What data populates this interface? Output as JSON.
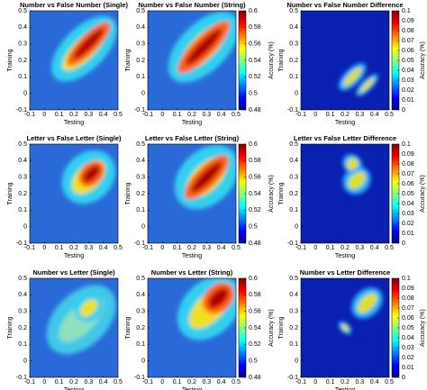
{
  "chart_data": [
    {
      "type": "heatmap",
      "title": "Number vs False Number (Single)",
      "xlabel": "Testing",
      "ylabel": "Training",
      "xlim": [
        -0.1,
        0.5
      ],
      "ylim": [
        -0.1,
        0.5
      ],
      "xticks": [
        -0.1,
        0,
        0.1,
        0.2,
        0.3,
        0.4,
        0.5
      ],
      "yticks": [
        -0.1,
        0,
        0.1,
        0.2,
        0.3,
        0.4,
        0.5
      ]
    },
    {
      "type": "heatmap",
      "title": "Number vs False Number (String)",
      "xlabel": "Testing",
      "ylabel": "Training",
      "xlim": [
        -0.1,
        0.5
      ],
      "ylim": [
        -0.1,
        0.5
      ],
      "xticks": [
        -0.1,
        0,
        0.1,
        0.2,
        0.3,
        0.4,
        0.5
      ],
      "yticks": [
        -0.1,
        0,
        0.1,
        0.2,
        0.3,
        0.4,
        0.5
      ],
      "colorbar": {
        "label": "Accuracy (%)",
        "lim": [
          0.48,
          0.6
        ],
        "ticks": [
          0.48,
          0.5,
          0.52,
          0.54,
          0.56,
          0.58,
          0.6
        ]
      }
    },
    {
      "type": "heatmap",
      "title": "Number vs False Number Difference",
      "xlabel": "Testing",
      "ylabel": "Training",
      "xlim": [
        -0.1,
        0.5
      ],
      "ylim": [
        -0.1,
        0.5
      ],
      "xticks": [
        -0.1,
        0,
        0.1,
        0.2,
        0.3,
        0.4,
        0.5
      ],
      "yticks": [
        -0.1,
        0,
        0.1,
        0.2,
        0.3,
        0.4,
        0.5
      ],
      "colorbar": {
        "label": "Accuracy (%)",
        "lim": [
          0,
          0.1
        ],
        "ticks": [
          0,
          0.01,
          0.02,
          0.03,
          0.04,
          0.05,
          0.06,
          0.07,
          0.08,
          0.09,
          0.1
        ]
      }
    },
    {
      "type": "heatmap",
      "title": "Letter vs False Letter (Single)",
      "xlabel": "Testing",
      "ylabel": "Training",
      "xlim": [
        -0.1,
        0.5
      ],
      "ylim": [
        -0.1,
        0.5
      ],
      "xticks": [
        -0.1,
        0,
        0.1,
        0.2,
        0.3,
        0.4,
        0.5
      ],
      "yticks": [
        -0.1,
        0,
        0.1,
        0.2,
        0.3,
        0.4,
        0.5
      ]
    },
    {
      "type": "heatmap",
      "title": "Letter vs False Letter (String)",
      "xlabel": "Testing",
      "ylabel": "Training",
      "xlim": [
        -0.1,
        0.5
      ],
      "ylim": [
        -0.1,
        0.5
      ],
      "xticks": [
        -0.1,
        0,
        0.1,
        0.2,
        0.3,
        0.4,
        0.5
      ],
      "yticks": [
        -0.1,
        0,
        0.1,
        0.2,
        0.3,
        0.4,
        0.5
      ],
      "colorbar": {
        "label": "Accuracy (%)",
        "lim": [
          0.48,
          0.6
        ],
        "ticks": [
          0.48,
          0.5,
          0.52,
          0.54,
          0.56,
          0.58,
          0.6
        ]
      }
    },
    {
      "type": "heatmap",
      "title": "Letter vs False Letter Difference",
      "xlabel": "Testing",
      "ylabel": "Training",
      "xlim": [
        -0.1,
        0.5
      ],
      "ylim": [
        -0.1,
        0.5
      ],
      "xticks": [
        -0.1,
        0,
        0.1,
        0.2,
        0.3,
        0.4,
        0.5
      ],
      "yticks": [
        -0.1,
        0,
        0.1,
        0.2,
        0.3,
        0.4,
        0.5
      ],
      "colorbar": {
        "label": "Accuracy (%)",
        "lim": [
          0,
          0.1
        ],
        "ticks": [
          0,
          0.01,
          0.02,
          0.03,
          0.04,
          0.05,
          0.06,
          0.07,
          0.08,
          0.09,
          0.1
        ]
      }
    },
    {
      "type": "heatmap",
      "title": "Number vs Letter (Single)",
      "xlabel": "Testing",
      "ylabel": "Training",
      "xlim": [
        -0.1,
        0.5
      ],
      "ylim": [
        -0.1,
        0.5
      ],
      "xticks": [
        -0.1,
        0,
        0.1,
        0.2,
        0.3,
        0.4,
        0.5
      ],
      "yticks": [
        -0.1,
        0,
        0.1,
        0.2,
        0.3,
        0.4,
        0.5
      ]
    },
    {
      "type": "heatmap",
      "title": "Number vs Letter (String)",
      "xlabel": "Testing",
      "ylabel": "Training",
      "xlim": [
        -0.1,
        0.5
      ],
      "ylim": [
        -0.1,
        0.5
      ],
      "xticks": [
        -0.1,
        0,
        0.1,
        0.2,
        0.3,
        0.4,
        0.5
      ],
      "yticks": [
        -0.1,
        0,
        0.1,
        0.2,
        0.3,
        0.4,
        0.5
      ],
      "colorbar": {
        "label": "Accuracy (%)",
        "lim": [
          0.48,
          0.6
        ],
        "ticks": [
          0.48,
          0.5,
          0.52,
          0.54,
          0.56,
          0.58,
          0.6
        ]
      }
    },
    {
      "type": "heatmap",
      "title": "Number vs Letter Difference",
      "xlabel": "Testing",
      "ylabel": "Training",
      "xlim": [
        -0.1,
        0.5
      ],
      "ylim": [
        -0.1,
        0.5
      ],
      "xticks": [
        -0.1,
        0,
        0.1,
        0.2,
        0.3,
        0.4,
        0.5
      ],
      "yticks": [
        -0.1,
        0,
        0.1,
        0.2,
        0.3,
        0.4,
        0.5
      ],
      "colorbar": {
        "label": "Accuracy (%)",
        "lim": [
          0,
          0.1
        ],
        "ticks": [
          0,
          0.01,
          0.02,
          0.03,
          0.04,
          0.05,
          0.06,
          0.07,
          0.08,
          0.09,
          0.1
        ]
      }
    }
  ]
}
